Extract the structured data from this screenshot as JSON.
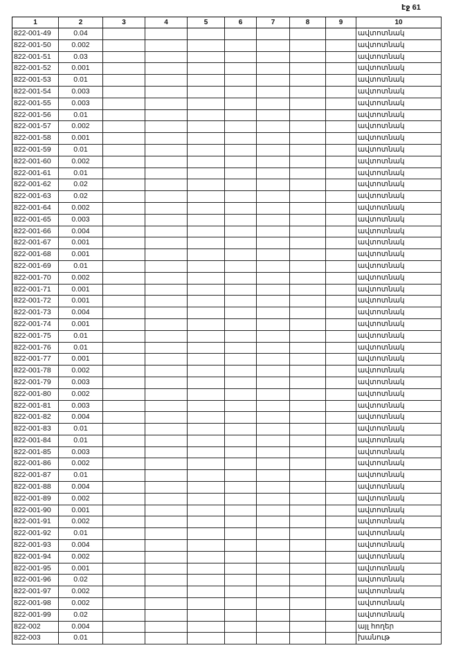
{
  "header": {
    "page_label": "էջ 61"
  },
  "table": {
    "columns": [
      "1",
      "2",
      "3",
      "4",
      "5",
      "6",
      "7",
      "8",
      "9",
      "10"
    ],
    "rows": [
      {
        "code": "822-001-49",
        "value": "0.04",
        "use": "ավտոտնակ"
      },
      {
        "code": "822-001-50",
        "value": "0.002",
        "use": "ավտոտնակ"
      },
      {
        "code": "822-001-51",
        "value": "0.03",
        "use": "ավտոտնակ"
      },
      {
        "code": "822-001-52",
        "value": "0.001",
        "use": "ավտոտնակ"
      },
      {
        "code": "822-001-53",
        "value": "0.01",
        "use": "ավտոտնակ"
      },
      {
        "code": "822-001-54",
        "value": "0.003",
        "use": "ավտոտնակ"
      },
      {
        "code": "822-001-55",
        "value": "0.003",
        "use": "ավտոտնակ"
      },
      {
        "code": "822-001-56",
        "value": "0.01",
        "use": "ավտոտնակ"
      },
      {
        "code": "822-001-57",
        "value": "0.002",
        "use": "ավտոտնակ"
      },
      {
        "code": "822-001-58",
        "value": "0.001",
        "use": "ավտոտնակ"
      },
      {
        "code": "822-001-59",
        "value": "0.01",
        "use": "ավտոտնակ"
      },
      {
        "code": "822-001-60",
        "value": "0.002",
        "use": "ավտոտնակ"
      },
      {
        "code": "822-001-61",
        "value": "0.01",
        "use": "ավտոտնակ"
      },
      {
        "code": "822-001-62",
        "value": "0.02",
        "use": "ավտոտնակ"
      },
      {
        "code": "822-001-63",
        "value": "0.02",
        "use": "ավտոտնակ"
      },
      {
        "code": "822-001-64",
        "value": "0.002",
        "use": "ավտոտնակ"
      },
      {
        "code": "822-001-65",
        "value": "0.003",
        "use": "ավտոտնակ"
      },
      {
        "code": "822-001-66",
        "value": "0.004",
        "use": "ավտոտնակ"
      },
      {
        "code": "822-001-67",
        "value": "0.001",
        "use": "ավտոտնակ"
      },
      {
        "code": "822-001-68",
        "value": "0.001",
        "use": "ավտոտնակ"
      },
      {
        "code": "822-001-69",
        "value": "0.01",
        "use": "ավտոտնակ"
      },
      {
        "code": "822-001-70",
        "value": "0.002",
        "use": "ավտոտնակ"
      },
      {
        "code": "822-001-71",
        "value": "0.001",
        "use": "ավտոտնակ"
      },
      {
        "code": "822-001-72",
        "value": "0.001",
        "use": "ավտոտնակ"
      },
      {
        "code": "822-001-73",
        "value": "0.004",
        "use": "ավտոտնակ"
      },
      {
        "code": "822-001-74",
        "value": "0.001",
        "use": "ավտոտնակ"
      },
      {
        "code": "822-001-75",
        "value": "0.01",
        "use": "ավտոտնակ"
      },
      {
        "code": "822-001-76",
        "value": "0.01",
        "use": "ավտոտնակ"
      },
      {
        "code": "822-001-77",
        "value": "0.001",
        "use": "ավտոտնակ"
      },
      {
        "code": "822-001-78",
        "value": "0.002",
        "use": "ավտոտնակ"
      },
      {
        "code": "822-001-79",
        "value": "0.003",
        "use": "ավտոտնակ"
      },
      {
        "code": "822-001-80",
        "value": "0.002",
        "use": "ավտոտնակ"
      },
      {
        "code": "822-001-81",
        "value": "0.003",
        "use": "ավտոտնակ"
      },
      {
        "code": "822-001-82",
        "value": "0.004",
        "use": "ավտոտնակ"
      },
      {
        "code": "822-001-83",
        "value": "0.01",
        "use": "ավտոտնակ"
      },
      {
        "code": "822-001-84",
        "value": "0.01",
        "use": "ավտոտնակ"
      },
      {
        "code": "822-001-85",
        "value": "0.003",
        "use": "ավտոտնակ"
      },
      {
        "code": "822-001-86",
        "value": "0.002",
        "use": "ավտոտնակ"
      },
      {
        "code": "822-001-87",
        "value": "0.01",
        "use": "ավտոտնակ"
      },
      {
        "code": "822-001-88",
        "value": "0.004",
        "use": "ավտոտնակ"
      },
      {
        "code": "822-001-89",
        "value": "0.002",
        "use": "ավտոտնակ"
      },
      {
        "code": "822-001-90",
        "value": "0.001",
        "use": "ավտոտնակ"
      },
      {
        "code": "822-001-91",
        "value": "0.002",
        "use": "ավտոտնակ"
      },
      {
        "code": "822-001-92",
        "value": "0.01",
        "use": "ավտոտնակ"
      },
      {
        "code": "822-001-93",
        "value": "0.004",
        "use": "ավտոտնակ"
      },
      {
        "code": "822-001-94",
        "value": "0.002",
        "use": "ավտոտնակ"
      },
      {
        "code": "822-001-95",
        "value": "0.001",
        "use": "ավտոտնակ"
      },
      {
        "code": "822-001-96",
        "value": "0.02",
        "use": "ավտոտնակ"
      },
      {
        "code": "822-001-97",
        "value": "0.002",
        "use": "ավտոտնակ"
      },
      {
        "code": "822-001-98",
        "value": "0.002",
        "use": "ավտոտնակ"
      },
      {
        "code": "822-001-99",
        "value": "0.02",
        "use": "ավտոտնակ"
      },
      {
        "code": "822-002",
        "value": "0.004",
        "use": "այլ հողեր"
      },
      {
        "code": "822-003",
        "value": "0.01",
        "use": "խանութ"
      }
    ]
  }
}
